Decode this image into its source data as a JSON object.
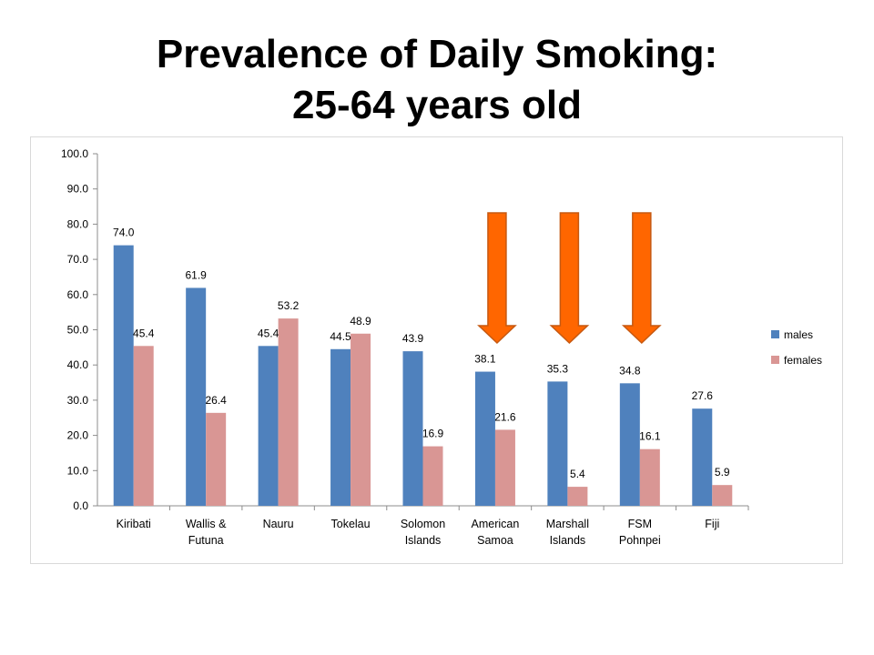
{
  "slide": {
    "title_line1": "Prevalence of Daily Smoking:",
    "title_line2": "25-64 years old"
  },
  "chart_data": {
    "type": "bar",
    "title": "",
    "xlabel": "",
    "ylabel": "",
    "ylim": [
      0,
      100
    ],
    "yticks": [
      "0.0",
      "10.0",
      "20.0",
      "30.0",
      "40.0",
      "50.0",
      "60.0",
      "70.0",
      "80.0",
      "90.0",
      "100.0"
    ],
    "grid": false,
    "legend_position": "right",
    "categories": [
      [
        "Kiribati"
      ],
      [
        "Wallis &",
        "Futuna"
      ],
      [
        "Nauru"
      ],
      [
        "Tokelau"
      ],
      [
        "Solomon",
        "Islands"
      ],
      [
        "American",
        "Samoa"
      ],
      [
        "Marshall",
        "Islands"
      ],
      [
        "FSM",
        "Pohnpei"
      ],
      [
        "Fiji"
      ]
    ],
    "series": [
      {
        "name": "males",
        "color": "#4f81bd",
        "values": [
          74.0,
          61.9,
          45.4,
          44.5,
          43.9,
          38.1,
          35.3,
          34.8,
          27.6
        ],
        "labels": [
          "74.0",
          "61.9",
          "45.4",
          "44.5",
          "43.9",
          "38.1",
          "35.3",
          "34.8",
          "27.6"
        ]
      },
      {
        "name": "females",
        "color": "#d99694",
        "values": [
          45.4,
          26.4,
          53.2,
          48.9,
          16.9,
          21.6,
          5.4,
          16.1,
          5.9
        ],
        "labels": [
          "45.4",
          "26.4",
          "53.2",
          "48.9",
          "16.9",
          "21.6",
          "5.4",
          "16.1",
          "5.9"
        ]
      }
    ],
    "annotations": {
      "type": "down-arrow",
      "color": "#ff6600",
      "stroke": "#c65911",
      "categories": [
        "American Samoa",
        "Marshall Islands",
        "FSM Pohnpei"
      ],
      "category_index": [
        5,
        6,
        7
      ]
    }
  }
}
